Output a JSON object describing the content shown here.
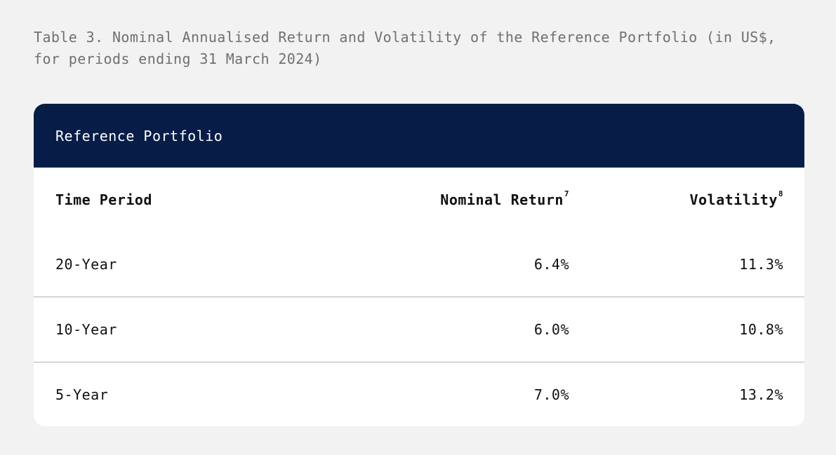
{
  "caption": "Table 3. Nominal Annualised Return and Volatility of the Reference Portfolio (in US$, for periods ending 31 March 2024)",
  "table": {
    "title": "Reference Portfolio",
    "columns": {
      "period": "Time Period",
      "return": "Nominal Return",
      "return_note": "7",
      "volatility": "Volatility",
      "volatility_note": "8"
    },
    "rows": [
      {
        "period": "20-Year",
        "return": "6.4%",
        "volatility": "11.3%"
      },
      {
        "period": "10-Year",
        "return": "6.0%",
        "volatility": "10.8%"
      },
      {
        "period": "5-Year",
        "return": "7.0%",
        "volatility": "13.2%"
      }
    ],
    "header_color": "#071d48"
  }
}
